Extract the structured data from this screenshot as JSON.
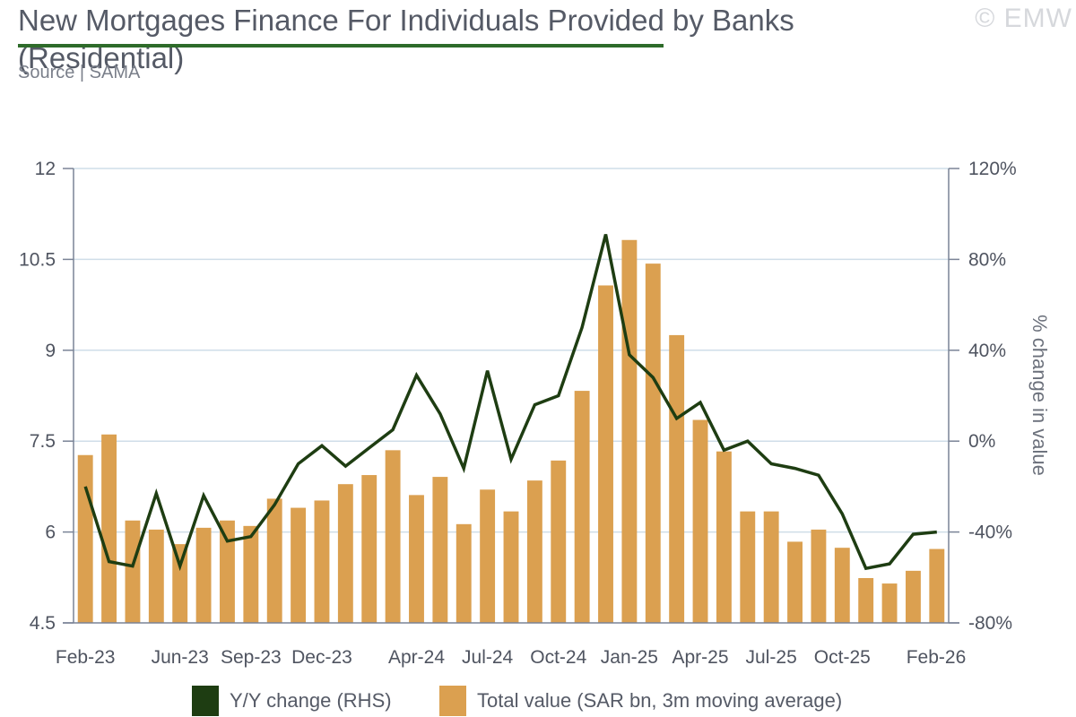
{
  "title": "New Mortgages Finance For Individuals Provided by Banks (Residential)",
  "source": "Source | SAMA",
  "watermark": "© EMW",
  "colors": {
    "bar": "#dba050",
    "line": "#1e3d12",
    "grid": "#cfdde8",
    "axis": "#7a8396",
    "title_rule": "#2e6b2a"
  },
  "chart_data": {
    "type": "bar+line",
    "x": [
      "Feb-23",
      "Mar-23",
      "Apr-23",
      "May-23",
      "Jun-23",
      "Jul-23",
      "Aug-23",
      "Sep-23",
      "Oct-23",
      "Nov-23",
      "Dec-23",
      "Jan-24",
      "Feb-24",
      "Mar-24",
      "Apr-24",
      "May-24",
      "Jun-24",
      "Jul-24",
      "Aug-24",
      "Sep-24",
      "Oct-24",
      "Nov-24",
      "Dec-24",
      "Jan-25",
      "Feb-25",
      "Mar-25",
      "Apr-25",
      "May-25",
      "Jun-25",
      "Jul-25",
      "Aug-25",
      "Sep-25",
      "Oct-25",
      "Nov-25",
      "Dec-25",
      "Jan-26",
      "Feb-26"
    ],
    "x_tick_labels": [
      {
        "index": 0,
        "label": "Feb-23"
      },
      {
        "index": 4,
        "label": "Jun-23"
      },
      {
        "index": 7,
        "label": "Sep-23"
      },
      {
        "index": 10,
        "label": "Dec-23"
      },
      {
        "index": 14,
        "label": "Apr-24"
      },
      {
        "index": 17,
        "label": "Jul-24"
      },
      {
        "index": 20,
        "label": "Oct-24"
      },
      {
        "index": 23,
        "label": "Jan-25"
      },
      {
        "index": 26,
        "label": "Apr-25"
      },
      {
        "index": 29,
        "label": "Jul-25"
      },
      {
        "index": 32,
        "label": "Oct-25"
      },
      {
        "index": 36,
        "label": "Feb-26"
      }
    ],
    "series": [
      {
        "name": "Total value (SAR bn, 3m moving average)",
        "type": "bar",
        "axis": "left",
        "values": [
          7.27,
          7.61,
          6.19,
          6.04,
          5.8,
          6.07,
          6.19,
          6.1,
          6.55,
          6.4,
          6.52,
          6.79,
          6.94,
          7.35,
          6.61,
          6.91,
          6.13,
          6.7,
          6.34,
          6.85,
          7.18,
          8.33,
          10.07,
          10.82,
          10.43,
          9.25,
          7.85,
          7.33,
          6.34,
          6.34,
          5.84,
          6.04,
          5.74,
          5.24,
          5.15,
          5.36,
          5.72
        ]
      },
      {
        "name": "Y/Y change (RHS)",
        "type": "line",
        "axis": "right",
        "values": [
          -20,
          -53,
          -55,
          -23,
          -55,
          -24,
          -44,
          -42,
          -28,
          -10,
          -2,
          -11,
          -3,
          5,
          29,
          12,
          -12,
          31,
          -8,
          16,
          20,
          50,
          91,
          38,
          28,
          10,
          17,
          -4,
          0,
          -10,
          -12,
          -15,
          -32,
          -56,
          -54,
          -41,
          -40
        ]
      }
    ],
    "y_left": {
      "min": 4.5,
      "max": 12,
      "ticks": [
        "4.5",
        "6",
        "7.5",
        "9",
        "10.5",
        "12"
      ]
    },
    "y_right": {
      "min": -80,
      "max": 120,
      "ticks": [
        "-80%",
        "-40%",
        "0%",
        "40%",
        "80%",
        "120%"
      ],
      "label": "% change in value"
    },
    "grid": true,
    "legend_position": "bottom"
  }
}
